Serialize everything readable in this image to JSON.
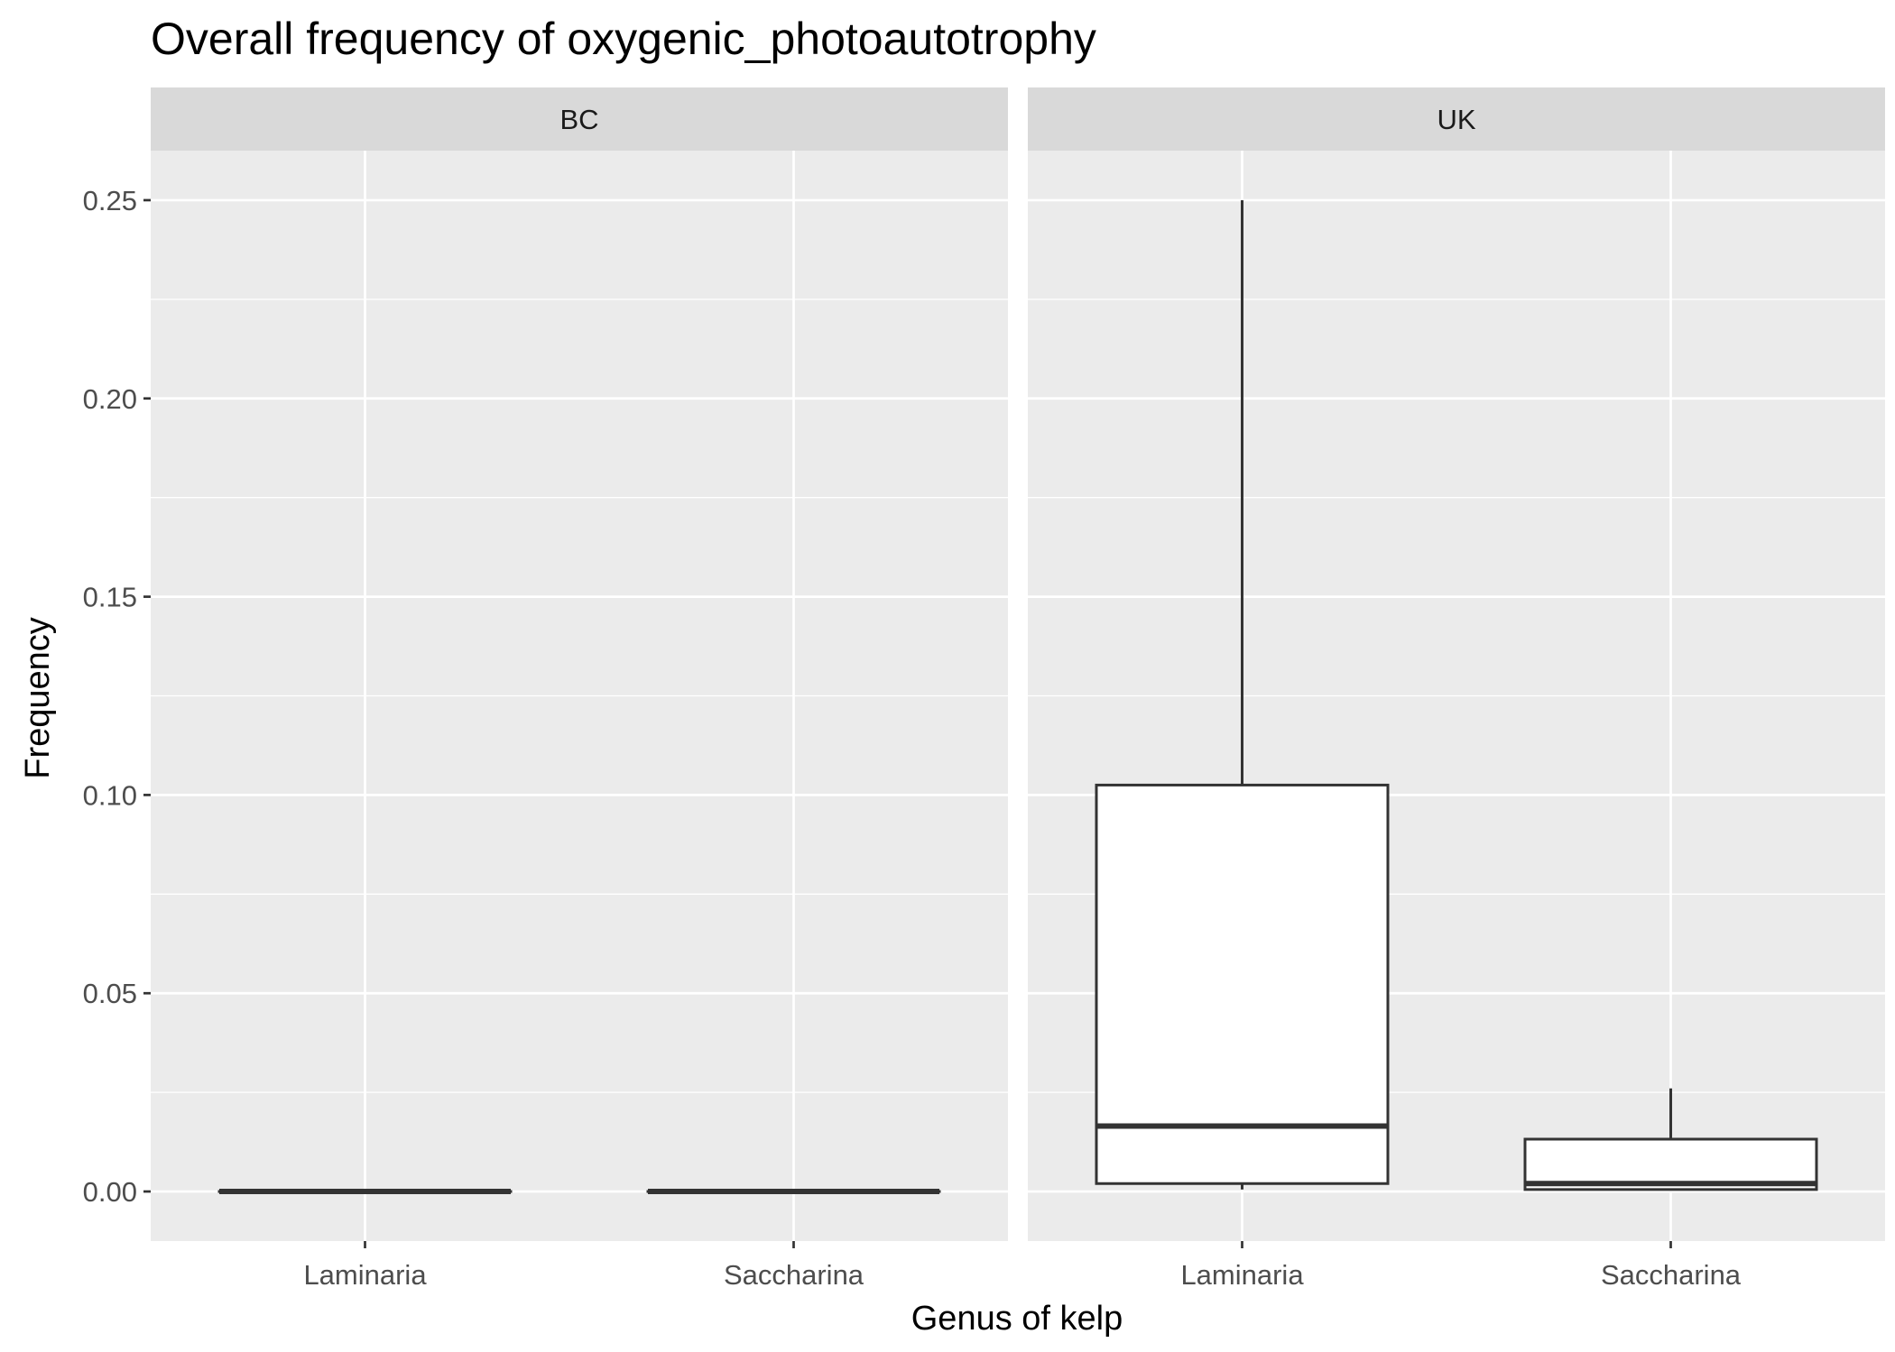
{
  "chart_data": {
    "type": "boxplot",
    "title": "Overall frequency of oxygenic_photoautotrophy",
    "xlabel": "Genus of kelp",
    "ylabel": "Frequency",
    "ylim": [
      -0.0125,
      0.2625
    ],
    "yticks": [
      0.0,
      0.05,
      0.1,
      0.15,
      0.2,
      0.25
    ],
    "ytick_labels": [
      "0.00",
      "0.05",
      "0.10",
      "0.15",
      "0.20",
      "0.25"
    ],
    "categories": [
      "Laminaria",
      "Saccharina"
    ],
    "grid": true,
    "panels": [
      {
        "name": "BC",
        "boxes": [
          {
            "category": "Laminaria",
            "min": 0,
            "q1": 0,
            "median": 0,
            "q3": 0,
            "max": 0
          },
          {
            "category": "Saccharina",
            "min": 0,
            "q1": 0,
            "median": 0,
            "q3": 0,
            "max": 0
          }
        ]
      },
      {
        "name": "UK",
        "boxes": [
          {
            "category": "Laminaria",
            "min": 0.0005,
            "q1": 0.002,
            "median": 0.0165,
            "q3": 0.1025,
            "max": 0.25
          },
          {
            "category": "Saccharina",
            "min": 0.0003,
            "q1": 0.0005,
            "median": 0.002,
            "q3": 0.0132,
            "max": 0.026
          }
        ]
      }
    ],
    "colors": {
      "panel_bg": "#ebebeb",
      "strip_bg": "#d9d9d9",
      "grid": "#ffffff",
      "box_fill": "#ffffff",
      "box_stroke": "#333333"
    }
  }
}
